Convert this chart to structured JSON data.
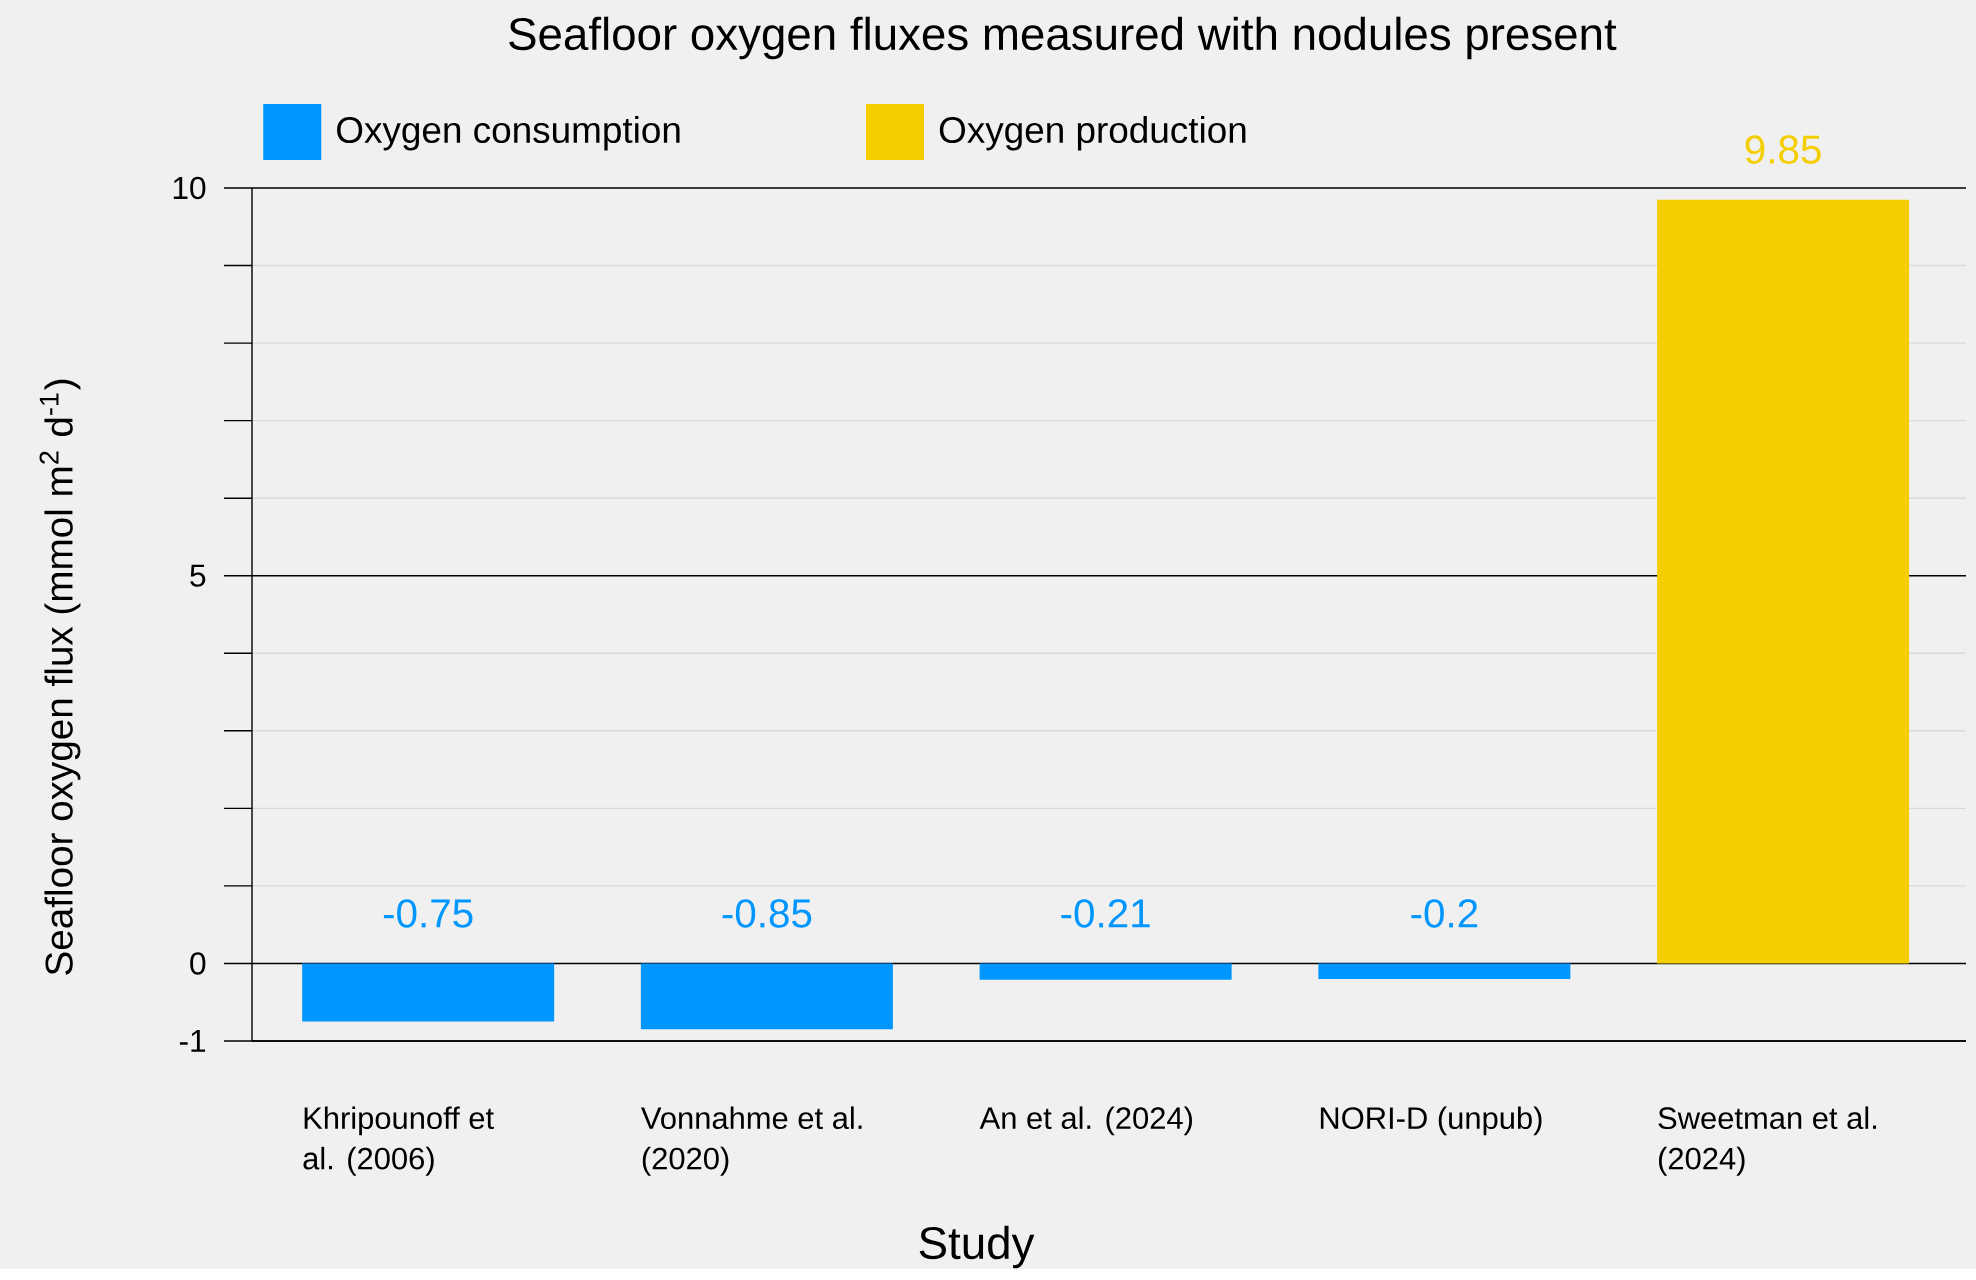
{
  "chart_data": {
    "type": "bar",
    "title": "Seafloor oxygen fluxes measured with nodules present",
    "xlabel": "Study",
    "ylabel": "Seafloor oxygen flux (mmol m$^{2}$ d$^{-1}$)",
    "categories": [
      "Khripounoff et al. (2006)",
      "Vonnahme et al. (2020)",
      "An et al. (2024)",
      "NORI-D (unpub)",
      "Sweetman et al. (2024)"
    ],
    "series": [
      {
        "name": "Oxygen consumption",
        "color": "#0096ff",
        "values": [
          -0.75,
          -0.85,
          -0.21,
          -0.2,
          null
        ],
        "value_labels": [
          "-0.75",
          "-0.85",
          "-0.21",
          "-0.2",
          null
        ]
      },
      {
        "name": "Oxygen production",
        "color": "#f5ce00",
        "values": [
          null,
          null,
          null,
          null,
          9.85
        ],
        "value_labels": [
          null,
          null,
          null,
          null,
          "9.85"
        ]
      }
    ],
    "ylim": [
      -1,
      10
    ],
    "yticks": [
      -1,
      0,
      {
        "value": 1,
        "label": null
      },
      {
        "value": 2,
        "label": null
      },
      {
        "value": 3,
        "label": null
      },
      {
        "value": 4,
        "label": null
      },
      5,
      {
        "value": 6,
        "label": null
      },
      {
        "value": 7,
        "label": null
      },
      {
        "value": 8,
        "label": null
      },
      {
        "value": 9,
        "label": null
      },
      10
    ],
    "grid": "y",
    "legend": "top left"
  }
}
